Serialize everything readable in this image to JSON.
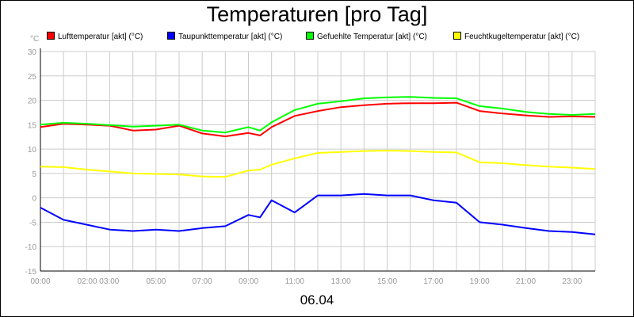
{
  "chart_data": {
    "type": "line",
    "title": "Temperaturen [pro Tag]",
    "ylabel": "°C",
    "xlabel": "06.04",
    "ylim": [
      -15,
      30
    ],
    "xlim": [
      0,
      24
    ],
    "grid": true,
    "legend_placement": "top",
    "y_ticks": [
      "30",
      "25",
      "20",
      "15",
      "10",
      "5",
      "0",
      "-5",
      "-10",
      "-15"
    ],
    "x_ticks": [
      "00:00",
      "02:00 03:00",
      "05:00",
      "07:00",
      "09:00",
      "11:00",
      "13:00",
      "15:00",
      "17:00",
      "19:00",
      "21:00",
      "23:00"
    ],
    "x": [
      0,
      1,
      2,
      3,
      4,
      5,
      6,
      7,
      8,
      9,
      9.5,
      10,
      11,
      12,
      13,
      14,
      15,
      16,
      17,
      18,
      19,
      20,
      21,
      22,
      23,
      24
    ],
    "series": [
      {
        "name": "Lufttemperatur [akt] (°C)",
        "color": "#ff0000",
        "values": [
          14.5,
          15.2,
          15.0,
          14.8,
          13.8,
          14.0,
          14.8,
          13.2,
          12.6,
          13.3,
          12.8,
          14.5,
          16.8,
          17.8,
          18.6,
          19.0,
          19.3,
          19.4,
          19.4,
          19.5,
          17.8,
          17.3,
          16.9,
          16.6,
          16.7,
          16.6
        ]
      },
      {
        "name": "Taupunkttemperatur [akt] (°C)",
        "color": "#0000ff",
        "values": [
          -2.0,
          -4.5,
          -5.5,
          -6.5,
          -6.8,
          -6.5,
          -6.8,
          -6.2,
          -5.8,
          -3.5,
          -4.0,
          -0.5,
          -3.0,
          0.5,
          0.5,
          0.8,
          0.5,
          0.5,
          -0.5,
          -1.0,
          -5.0,
          -5.5,
          -6.2,
          -6.8,
          -7.0,
          -7.5
        ]
      },
      {
        "name": "Gefuehlte Temperatur [akt] (°C)",
        "color": "#00ff00",
        "values": [
          15.0,
          15.4,
          15.2,
          14.9,
          14.6,
          14.8,
          15.0,
          13.8,
          13.4,
          14.5,
          13.8,
          15.5,
          18.0,
          19.3,
          19.8,
          20.4,
          20.6,
          20.7,
          20.5,
          20.4,
          18.8,
          18.3,
          17.6,
          17.2,
          17.0,
          17.2
        ]
      },
      {
        "name": "Feuchtkugeltemperatur [akt] (°C)",
        "color": "#ffff00",
        "values": [
          6.4,
          6.3,
          5.8,
          5.4,
          5.0,
          4.9,
          4.8,
          4.4,
          4.3,
          5.6,
          5.8,
          6.8,
          8.1,
          9.2,
          9.4,
          9.6,
          9.7,
          9.6,
          9.4,
          9.3,
          7.3,
          7.1,
          6.7,
          6.4,
          6.2,
          5.9
        ]
      }
    ]
  }
}
